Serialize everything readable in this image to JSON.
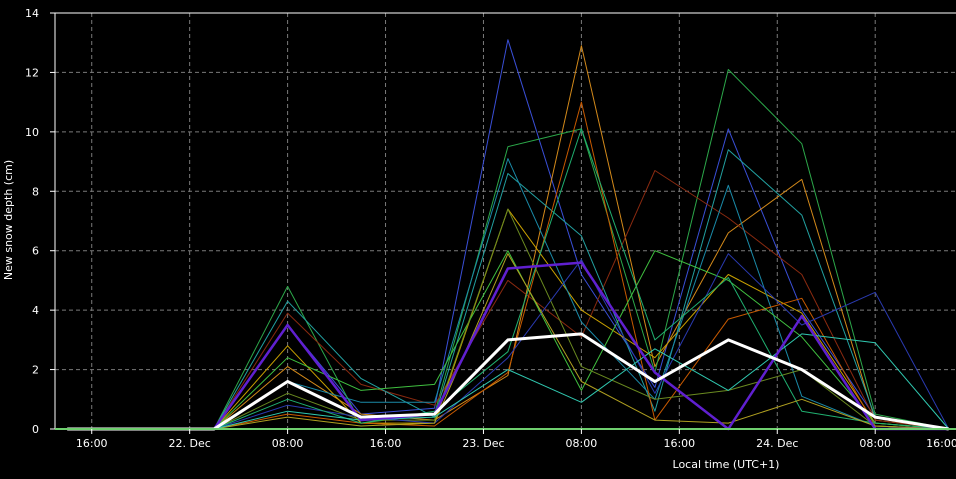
{
  "chart_data": {
    "type": "line",
    "xlabel": "Local time (UTC+1)",
    "ylabel": "New snow depth (cm)",
    "ylim": [
      0,
      14
    ],
    "yticks": [
      0,
      2,
      4,
      6,
      8,
      10,
      12,
      14
    ],
    "xlim_hours": [
      -11,
      62.6
    ],
    "xticks": [
      {
        "label": "16:00",
        "hour": -8
      },
      {
        "label": "22. Dec",
        "hour": 0
      },
      {
        "label": "08:00",
        "hour": 8
      },
      {
        "label": "16:00",
        "hour": 16
      },
      {
        "label": "23. Dec",
        "hour": 24
      },
      {
        "label": "08:00",
        "hour": 32
      },
      {
        "label": "16:00",
        "hour": 40
      },
      {
        "label": "24. Dec",
        "hour": 48
      },
      {
        "label": "08:00",
        "hour": 56
      },
      {
        "label": "16:00",
        "hour": 64
      }
    ],
    "grid": true,
    "x_hours": [
      -10,
      -4,
      2,
      8,
      14,
      20,
      26,
      32,
      38,
      44,
      50,
      56,
      62
    ],
    "series": [
      {
        "color": "#3a4fd8",
        "width": 1,
        "values": [
          0,
          0,
          0,
          3.5,
          0.5,
          0.7,
          13.1,
          5.2,
          1.4,
          10.1,
          4.0,
          0.4,
          0
        ]
      },
      {
        "color": "#d48a1a",
        "width": 1,
        "values": [
          0,
          0,
          0,
          2.1,
          0.5,
          0.3,
          1.8,
          12.9,
          2.1,
          6.6,
          8.4,
          0.3,
          0
        ]
      },
      {
        "color": "#2ca84a",
        "width": 1,
        "values": [
          0,
          0,
          0,
          4.8,
          0.2,
          0.5,
          9.5,
          10.1,
          1.9,
          12.1,
          9.6,
          0.5,
          0
        ]
      },
      {
        "color": "#8a2a10",
        "width": 1,
        "values": [
          0,
          0,
          0,
          3.9,
          1.5,
          0.8,
          5.0,
          3.1,
          8.7,
          7.1,
          5.2,
          0.3,
          0
        ]
      },
      {
        "color": "#22a0a0",
        "width": 1,
        "values": [
          0,
          0,
          0,
          4.3,
          1.7,
          0.4,
          8.6,
          6.5,
          0.6,
          9.4,
          7.2,
          0.4,
          0
        ]
      },
      {
        "color": "#c8a000",
        "width": 1,
        "values": [
          0,
          0,
          0,
          2.8,
          0.2,
          0.2,
          7.4,
          4.0,
          2.4,
          5.2,
          3.9,
          0.2,
          0
        ]
      },
      {
        "color": "#1a8aa8",
        "width": 1,
        "values": [
          0,
          0,
          0,
          1.6,
          0.9,
          0.9,
          9.1,
          3.6,
          1.0,
          8.2,
          1.1,
          0.1,
          0
        ]
      },
      {
        "color": "#c85a00",
        "width": 1,
        "values": [
          0,
          0,
          0,
          0.5,
          0.2,
          0.1,
          1.9,
          11.0,
          0.3,
          3.7,
          4.4,
          0.1,
          0
        ]
      },
      {
        "color": "#40c040",
        "width": 1,
        "values": [
          0,
          0,
          0,
          2.4,
          1.3,
          1.5,
          6.0,
          1.3,
          6.0,
          5.0,
          3.1,
          0.2,
          0
        ]
      },
      {
        "color": "#6a8a20",
        "width": 1,
        "values": [
          0,
          0,
          0,
          1.2,
          0.3,
          0.3,
          7.4,
          2.1,
          1.0,
          1.3,
          2.0,
          0.1,
          0
        ]
      },
      {
        "color": "#2a3ab0",
        "width": 1,
        "values": [
          0,
          0,
          0,
          0.8,
          0.4,
          0.2,
          2.4,
          5.7,
          1.2,
          5.9,
          3.5,
          4.6,
          0
        ]
      },
      {
        "color": "#20b070",
        "width": 1,
        "values": [
          0,
          0,
          0,
          1.0,
          0.2,
          0.6,
          2.6,
          10.1,
          3.0,
          5.1,
          0.6,
          0.2,
          0
        ]
      },
      {
        "color": "#b0a020",
        "width": 1,
        "values": [
          0,
          0,
          0,
          0.4,
          0.1,
          0.2,
          5.9,
          1.6,
          0.3,
          0.2,
          1.0,
          0.1,
          0
        ]
      },
      {
        "color": "#30c8b0",
        "width": 1,
        "values": [
          0,
          0,
          0,
          0.6,
          0.3,
          0.4,
          2.0,
          0.9,
          2.7,
          1.3,
          3.2,
          2.9,
          0
        ]
      },
      {
        "color": "#6020d0",
        "width": 2.5,
        "values": [
          0,
          0,
          0,
          3.5,
          0.3,
          0.5,
          5.4,
          5.6,
          1.9,
          0,
          3.8,
          0,
          0
        ]
      },
      {
        "color": "#ffffff",
        "width": 3,
        "values": [
          0,
          0,
          0,
          1.6,
          0.4,
          0.5,
          3.0,
          3.2,
          1.6,
          3.0,
          2.0,
          0.4,
          0
        ]
      }
    ]
  }
}
